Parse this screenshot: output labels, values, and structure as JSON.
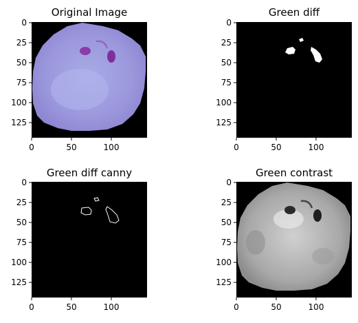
{
  "figure": {
    "panels": [
      {
        "title": "Original Image",
        "xticks": [
          "0",
          "50",
          "100"
        ],
        "yticks": [
          "0",
          "25",
          "50",
          "75",
          "100",
          "125"
        ]
      },
      {
        "title": "Green diff",
        "xticks": [
          "0",
          "50",
          "100"
        ],
        "yticks": [
          "0",
          "25",
          "50",
          "75",
          "100",
          "125"
        ]
      },
      {
        "title": "Green diff canny",
        "xticks": [
          "0",
          "50",
          "100"
        ],
        "yticks": [
          "0",
          "25",
          "50",
          "75",
          "100",
          "125"
        ]
      },
      {
        "title": "Green contrast",
        "xticks": [
          "0",
          "50",
          "100"
        ],
        "yticks": [
          "0",
          "25",
          "50",
          "75",
          "100",
          "125"
        ]
      }
    ]
  }
}
